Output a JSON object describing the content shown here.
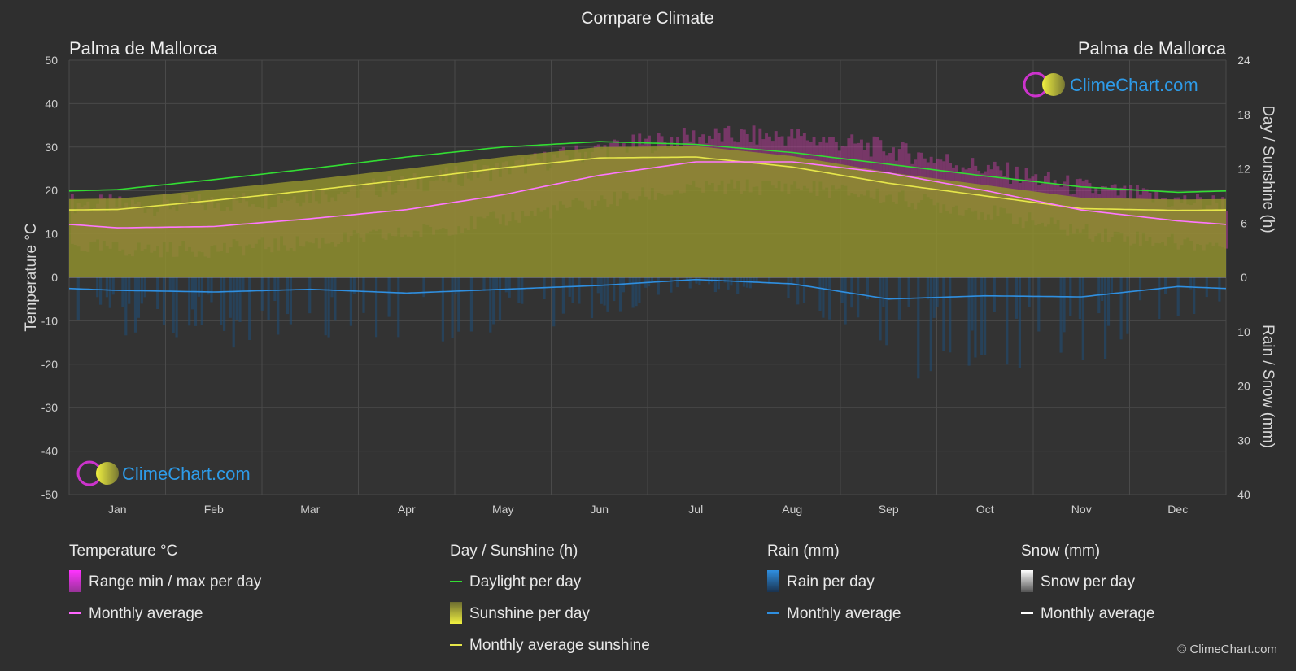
{
  "header": {
    "title": "Compare Climate",
    "location_left": "Palma de Mallorca",
    "location_right": "Palma de Mallorca",
    "brand": "ClimeChart.com",
    "copyright": "© ClimeChart.com"
  },
  "chart_data": {
    "type": "area",
    "months": [
      "Jan",
      "Feb",
      "Mar",
      "Apr",
      "May",
      "Jun",
      "Jul",
      "Aug",
      "Sep",
      "Oct",
      "Nov",
      "Dec"
    ],
    "left_axis": {
      "label": "Temperature °C",
      "range": [
        -50,
        50
      ],
      "ticks": [
        50,
        40,
        30,
        20,
        10,
        0,
        -10,
        -20,
        -30,
        -40,
        -50
      ]
    },
    "right_axis_top": {
      "label": "Day / Sunshine (h)",
      "range": [
        0,
        24
      ],
      "ticks": [
        24,
        18,
        12,
        6,
        0
      ]
    },
    "right_axis_bottom": {
      "label": "Rain / Snow (mm)",
      "range": [
        0,
        40
      ],
      "ticks": [
        0,
        10,
        20,
        30,
        40
      ]
    },
    "series": [
      {
        "name": "Daylight per day",
        "unit": "h",
        "color": "#33dd33",
        "values": [
          9.7,
          10.8,
          12.0,
          13.3,
          14.4,
          15.0,
          14.7,
          13.8,
          12.5,
          11.2,
          10.0,
          9.4
        ]
      },
      {
        "name": "Monthly average sunshine",
        "unit": "h",
        "color": "#e6e64a",
        "values": [
          7.5,
          8.5,
          9.6,
          10.8,
          12.1,
          13.2,
          13.3,
          12.2,
          10.4,
          9.0,
          7.6,
          7.4
        ]
      },
      {
        "name": "Temperature monthly average",
        "unit": "°C",
        "color": "#ff66ff",
        "values": [
          11.4,
          11.7,
          13.5,
          15.6,
          19.0,
          23.5,
          26.6,
          26.6,
          24.0,
          20.0,
          15.5,
          13.0
        ]
      },
      {
        "name": "Temperature max per day",
        "unit": "°C",
        "values": [
          16.5,
          17.0,
          19.0,
          21.5,
          25.0,
          29.5,
          32.5,
          32.5,
          29.5,
          25.0,
          20.5,
          17.5
        ]
      },
      {
        "name": "Temperature min per day",
        "unit": "°C",
        "values": [
          6.5,
          6.5,
          8.0,
          10.0,
          13.5,
          17.5,
          20.5,
          21.0,
          18.5,
          15.0,
          10.5,
          8.0
        ]
      },
      {
        "name": "Rain monthly average",
        "unit": "mm",
        "color": "#2f8fe0",
        "values": [
          2.4,
          2.7,
          2.2,
          2.9,
          2.2,
          1.5,
          0.4,
          1.2,
          4.0,
          3.4,
          3.6,
          1.7
        ]
      }
    ],
    "grid": true
  },
  "legend": {
    "groups": [
      {
        "title": "Temperature °C",
        "items": [
          {
            "label": "Range min / max per day",
            "kind": "swatch-magenta"
          },
          {
            "label": "Monthly average",
            "kind": "line",
            "color": "#ff66ff"
          }
        ]
      },
      {
        "title": "Day / Sunshine (h)",
        "items": [
          {
            "label": "Daylight per day",
            "kind": "line",
            "color": "#33dd33"
          },
          {
            "label": "Sunshine per day",
            "kind": "swatch-yellow"
          },
          {
            "label": "Monthly average sunshine",
            "kind": "line",
            "color": "#e6e64a"
          }
        ]
      },
      {
        "title": "Rain (mm)",
        "items": [
          {
            "label": "Rain per day",
            "kind": "swatch-blue"
          },
          {
            "label": "Monthly average",
            "kind": "line",
            "color": "#2f8fe0"
          }
        ]
      },
      {
        "title": "Snow (mm)",
        "items": [
          {
            "label": "Snow per day",
            "kind": "swatch-white"
          },
          {
            "label": "Monthly average",
            "kind": "line",
            "color": "#ffffff"
          }
        ]
      }
    ]
  }
}
